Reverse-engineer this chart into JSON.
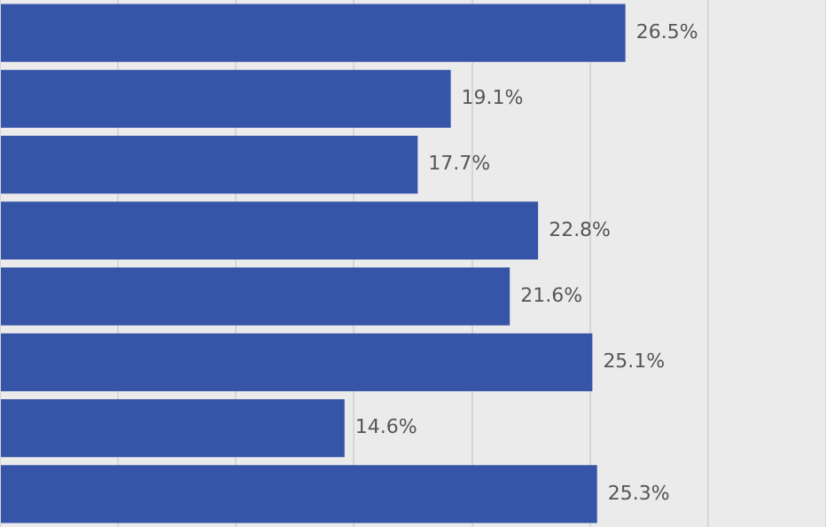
{
  "chart_data": {
    "type": "bar",
    "orientation": "horizontal",
    "categories": [
      null,
      null,
      null,
      null,
      null,
      null,
      null,
      null
    ],
    "values": [
      26.5,
      19.1,
      17.7,
      22.8,
      21.6,
      25.1,
      14.6,
      25.3
    ],
    "value_labels": [
      "26.5%",
      "19.1%",
      "17.7%",
      "22.8%",
      "21.6%",
      "25.1%",
      "14.6%",
      "25.3%"
    ],
    "color": "#3755a8",
    "xlim": [
      0,
      35
    ],
    "xticks": [
      {
        "value": 0,
        "label": null
      },
      {
        "value": 5,
        "label": null
      },
      {
        "value": 10,
        "label": null
      },
      {
        "value": 15,
        "label": null
      },
      {
        "value": 20,
        "label": null
      },
      {
        "value": 25,
        "label": null
      },
      {
        "value": 30,
        "label": null
      },
      {
        "value": 35,
        "label": null
      }
    ],
    "grid": "x",
    "tick_labels": false
  }
}
